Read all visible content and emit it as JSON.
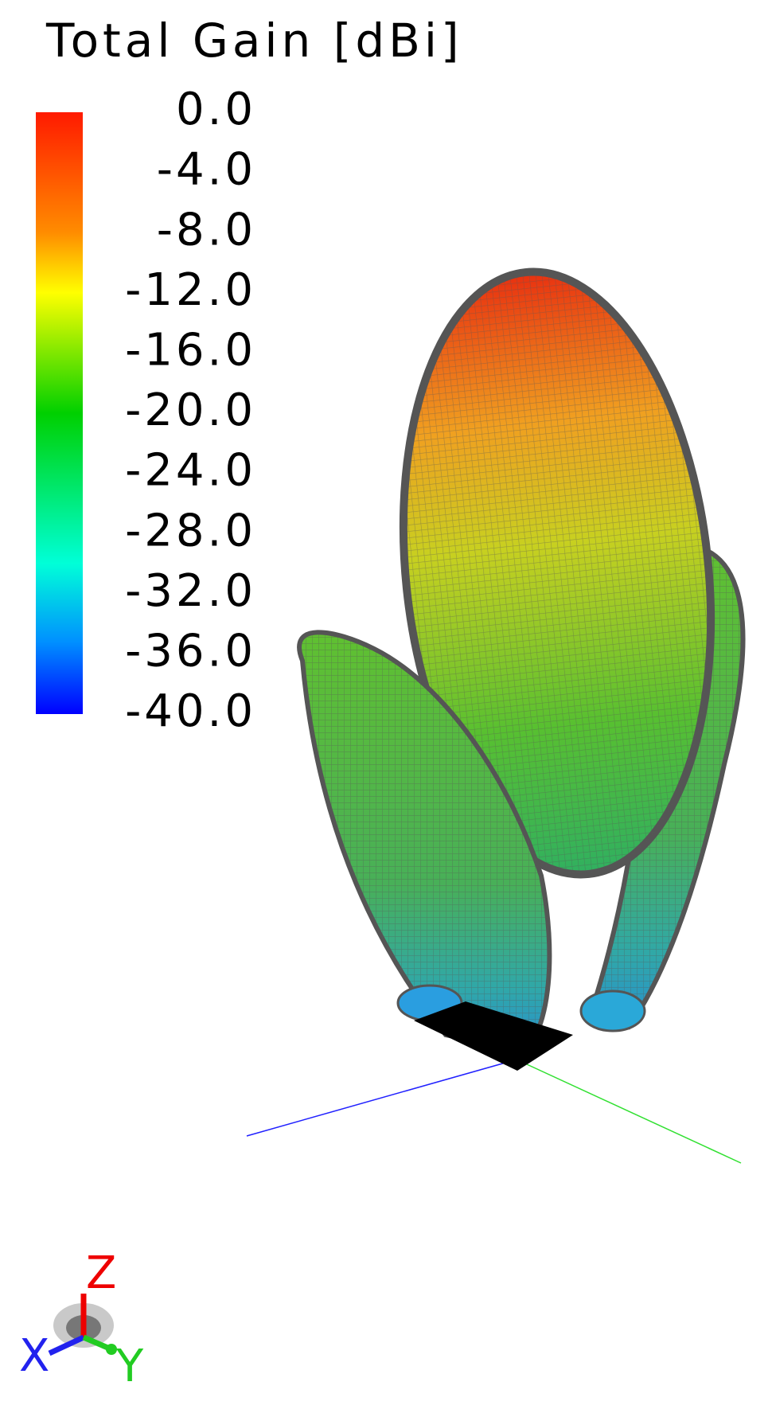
{
  "colorbar": {
    "title": "Total Gain [dBi]",
    "labels": [
      "0.0",
      "-4.0",
      "-8.0",
      "-12.0",
      "-16.0",
      "-20.0",
      "-24.0",
      "-28.0",
      "-32.0",
      "-36.0",
      "-40.0"
    ]
  },
  "triad": {
    "x": "X",
    "y": "Y",
    "z": "Z"
  }
}
